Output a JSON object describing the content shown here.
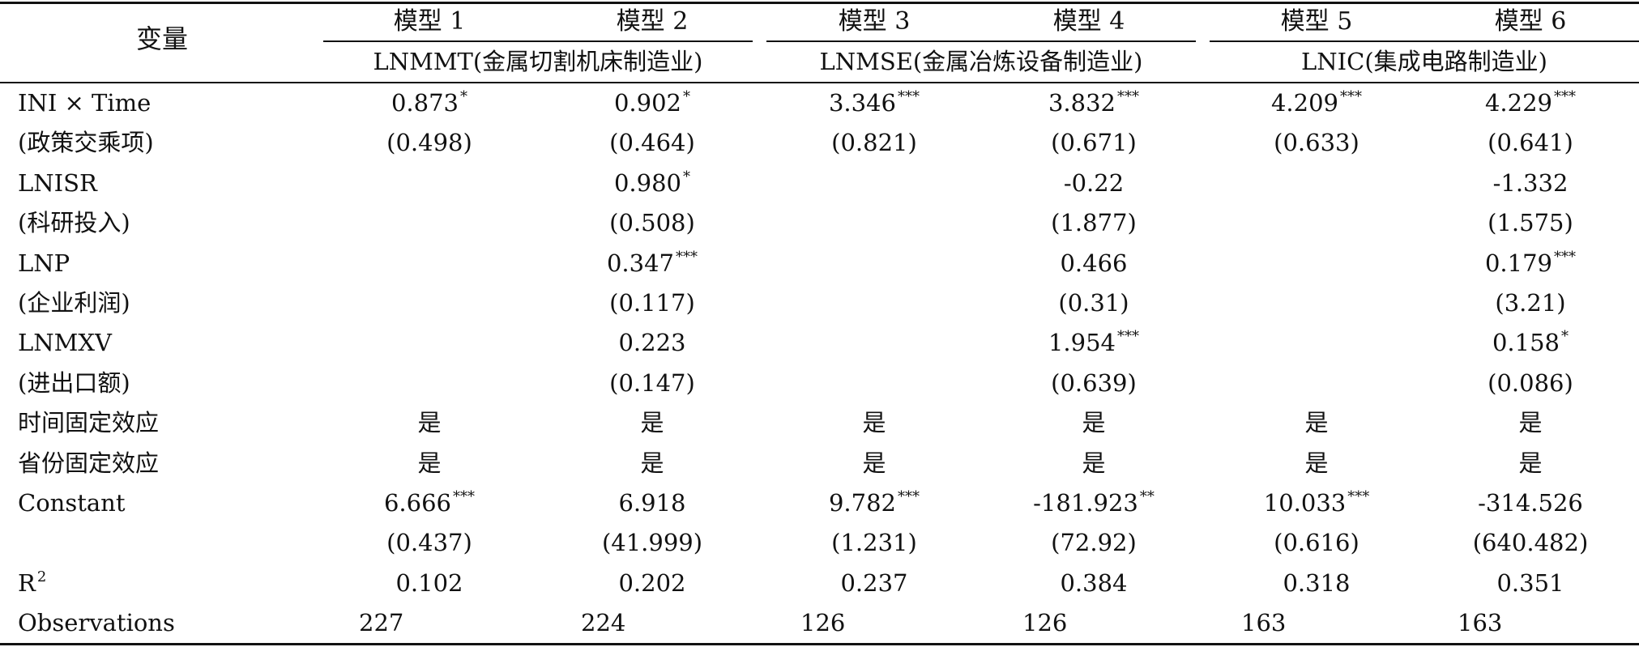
{
  "header": {
    "var_label": "变量",
    "models": [
      "模型 1",
      "模型 2",
      "模型 3",
      "模型 4",
      "模型 5",
      "模型 6"
    ],
    "groups": [
      "LNMMT(金属切割机床制造业)",
      "LNMSE(金属冶炼设备制造业)",
      "LNIC(集成电路制造业)"
    ]
  },
  "rows": [
    {
      "label": "INI × Time",
      "cells": [
        {
          "v": "0.873",
          "s": "*"
        },
        {
          "v": "0.902",
          "s": "*"
        },
        {
          "v": "3.346",
          "s": "***"
        },
        {
          "v": "3.832",
          "s": "***"
        },
        {
          "v": "4.209",
          "s": "***"
        },
        {
          "v": "4.229",
          "s": "***"
        }
      ]
    },
    {
      "label": "(政策交乘项)",
      "cells": [
        {
          "v": "(0.498)",
          "s": ""
        },
        {
          "v": "(0.464)",
          "s": ""
        },
        {
          "v": "(0.821)",
          "s": ""
        },
        {
          "v": "(0.671)",
          "s": ""
        },
        {
          "v": "(0.633)",
          "s": ""
        },
        {
          "v": "(0.641)",
          "s": ""
        }
      ]
    },
    {
      "label": "LNISR",
      "cells": [
        {
          "v": "",
          "s": ""
        },
        {
          "v": "0.980",
          "s": "*"
        },
        {
          "v": "",
          "s": ""
        },
        {
          "v": "-0.22",
          "s": ""
        },
        {
          "v": "",
          "s": ""
        },
        {
          "v": "-1.332",
          "s": ""
        }
      ]
    },
    {
      "label": "(科研投入)",
      "cells": [
        {
          "v": "",
          "s": ""
        },
        {
          "v": "(0.508)",
          "s": ""
        },
        {
          "v": "",
          "s": ""
        },
        {
          "v": "(1.877)",
          "s": ""
        },
        {
          "v": "",
          "s": ""
        },
        {
          "v": "(1.575)",
          "s": ""
        }
      ]
    },
    {
      "label": "LNP",
      "cells": [
        {
          "v": "",
          "s": ""
        },
        {
          "v": "0.347",
          "s": "***"
        },
        {
          "v": "",
          "s": ""
        },
        {
          "v": "0.466",
          "s": ""
        },
        {
          "v": "",
          "s": ""
        },
        {
          "v": "0.179",
          "s": "***"
        }
      ]
    },
    {
      "label": "(企业利润)",
      "cells": [
        {
          "v": "",
          "s": ""
        },
        {
          "v": "(0.117)",
          "s": ""
        },
        {
          "v": "",
          "s": ""
        },
        {
          "v": "(0.31)",
          "s": ""
        },
        {
          "v": "",
          "s": ""
        },
        {
          "v": "(3.21)",
          "s": ""
        }
      ]
    },
    {
      "label": "LNMXV",
      "cells": [
        {
          "v": "",
          "s": ""
        },
        {
          "v": "0.223",
          "s": ""
        },
        {
          "v": "",
          "s": ""
        },
        {
          "v": "1.954",
          "s": "***"
        },
        {
          "v": "",
          "s": ""
        },
        {
          "v": "0.158",
          "s": "*"
        }
      ]
    },
    {
      "label": "(进出口额)",
      "cells": [
        {
          "v": "",
          "s": ""
        },
        {
          "v": "(0.147)",
          "s": ""
        },
        {
          "v": "",
          "s": ""
        },
        {
          "v": "(0.639)",
          "s": ""
        },
        {
          "v": "",
          "s": ""
        },
        {
          "v": "(0.086)",
          "s": ""
        }
      ]
    },
    {
      "label": "时间固定效应",
      "cells": [
        {
          "v": "是",
          "s": ""
        },
        {
          "v": "是",
          "s": ""
        },
        {
          "v": "是",
          "s": ""
        },
        {
          "v": "是",
          "s": ""
        },
        {
          "v": "是",
          "s": ""
        },
        {
          "v": "是",
          "s": ""
        }
      ]
    },
    {
      "label": "省份固定效应",
      "cells": [
        {
          "v": "是",
          "s": ""
        },
        {
          "v": "是",
          "s": ""
        },
        {
          "v": "是",
          "s": ""
        },
        {
          "v": "是",
          "s": ""
        },
        {
          "v": "是",
          "s": ""
        },
        {
          "v": "是",
          "s": ""
        }
      ]
    },
    {
      "label": "Constant",
      "cells": [
        {
          "v": "6.666",
          "s": "***"
        },
        {
          "v": "6.918",
          "s": ""
        },
        {
          "v": "9.782",
          "s": "***"
        },
        {
          "v": "-181.923",
          "s": "**"
        },
        {
          "v": "10.033",
          "s": "***"
        },
        {
          "v": "-314.526",
          "s": ""
        }
      ]
    },
    {
      "label": "",
      "cells": [
        {
          "v": "(0.437)",
          "s": ""
        },
        {
          "v": "(41.999)",
          "s": ""
        },
        {
          "v": "(1.231)",
          "s": ""
        },
        {
          "v": "(72.92)",
          "s": ""
        },
        {
          "v": "(0.616)",
          "s": ""
        },
        {
          "v": "(640.482)",
          "s": ""
        }
      ]
    },
    {
      "label": "R",
      "label_sup": "2",
      "cells": [
        {
          "v": "0.102",
          "s": ""
        },
        {
          "v": "0.202",
          "s": ""
        },
        {
          "v": "0.237",
          "s": ""
        },
        {
          "v": "0.384",
          "s": ""
        },
        {
          "v": "0.318",
          "s": ""
        },
        {
          "v": "0.351",
          "s": ""
        }
      ]
    },
    {
      "label": "Observations",
      "cells": [
        {
          "v": "227",
          "s": ""
        },
        {
          "v": "224",
          "s": ""
        },
        {
          "v": "126",
          "s": ""
        },
        {
          "v": "126",
          "s": ""
        },
        {
          "v": "163",
          "s": ""
        },
        {
          "v": "163",
          "s": ""
        }
      ]
    }
  ]
}
